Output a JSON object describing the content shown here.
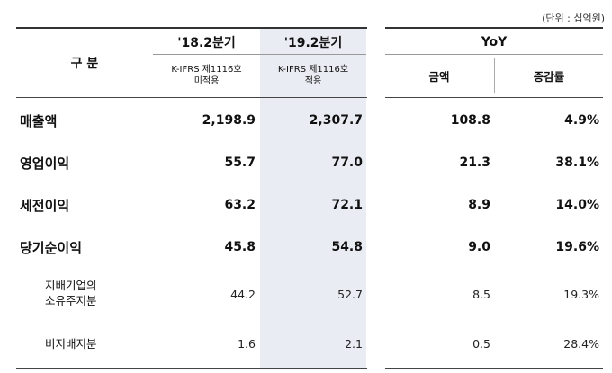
{
  "unit_note": "(단위 : 십억원)",
  "header": {
    "category": "구  분",
    "col1_title": "'18.2분기",
    "col1_sub1": "K-IFRS 제1116호",
    "col1_sub2": "미적용",
    "col2_title": "'19.2분기",
    "col2_sub1": "K-IFRS 제1116호",
    "col2_sub2": "적용",
    "yoy_title": "YoY",
    "yoy_amount": "금액",
    "yoy_rate": "증감률"
  },
  "rows": [
    {
      "label": "매출액",
      "q18": "2,198.9",
      "q19": "2,307.7",
      "amount": "108.8",
      "rate": "4.9%"
    },
    {
      "label": "영업이익",
      "q18": "55.7",
      "q19": "77.0",
      "amount": "21.3",
      "rate": "38.1%"
    },
    {
      "label": "세전이익",
      "q18": "63.2",
      "q19": "72.1",
      "amount": "8.9",
      "rate": "14.0%"
    },
    {
      "label": "당기순이익",
      "q18": "45.8",
      "q19": "54.8",
      "amount": "9.0",
      "rate": "19.6%"
    },
    {
      "label_line1": "지배기업의",
      "label_line2": "소유주지분",
      "q18": "44.2",
      "q19": "52.7",
      "amount": "8.5",
      "rate": "19.3%"
    },
    {
      "label": "비지배지분",
      "q18": "1.6",
      "q19": "2.1",
      "amount": "0.5",
      "rate": "28.4%"
    }
  ]
}
